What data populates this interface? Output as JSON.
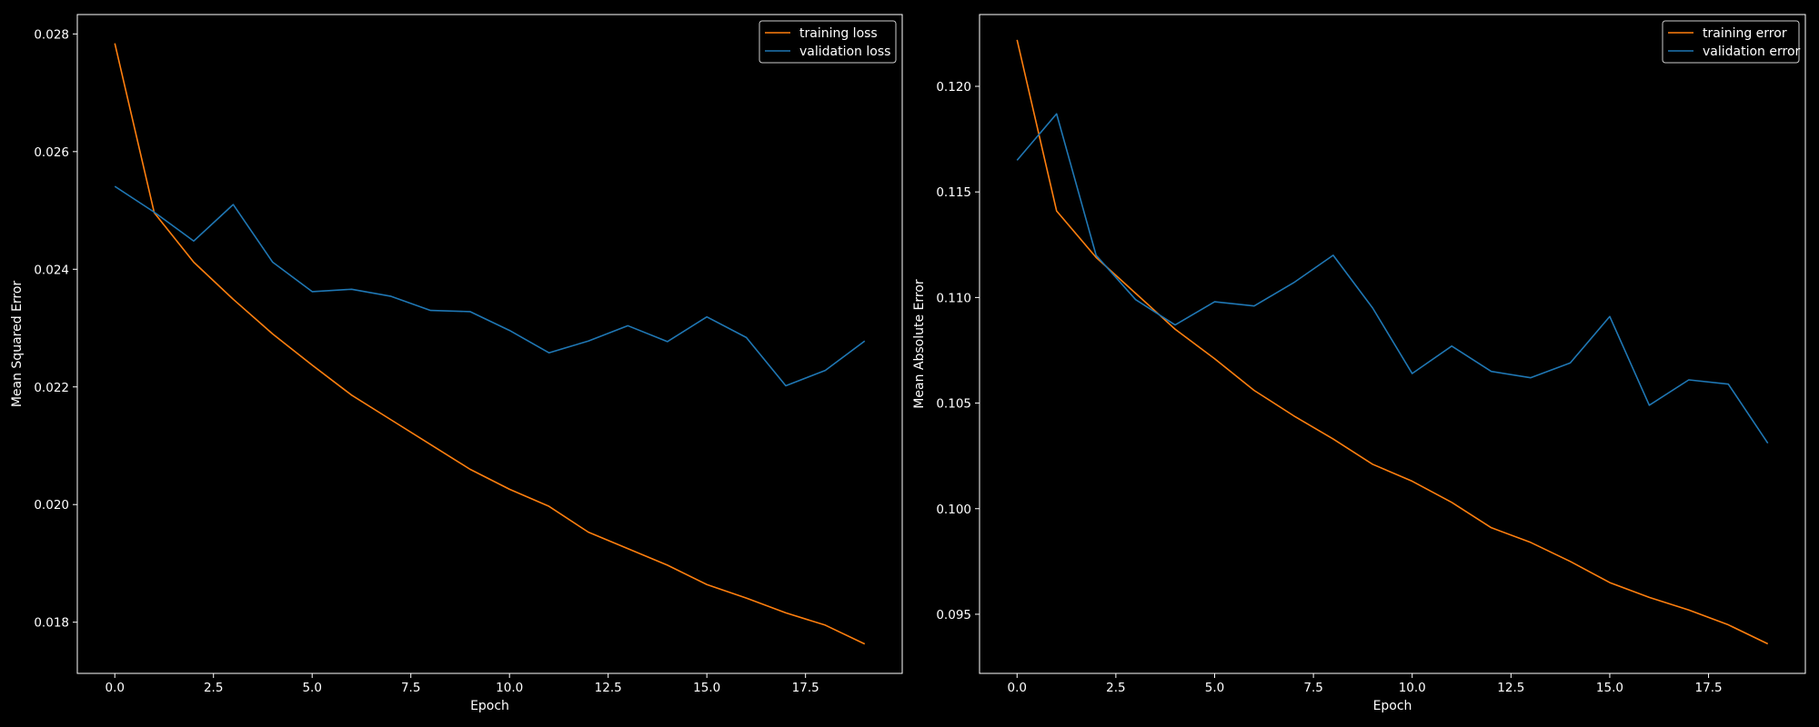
{
  "chart_data": [
    {
      "type": "line",
      "xlabel": "Epoch",
      "ylabel": "Mean Squared Error",
      "xlim": [
        -0.95,
        19.95
      ],
      "ylim": [
        0.01713,
        0.02833
      ],
      "xticks": [
        0.0,
        2.5,
        5.0,
        7.5,
        10.0,
        12.5,
        15.0,
        17.5
      ],
      "xtick_labels": [
        "0.0",
        "2.5",
        "5.0",
        "7.5",
        "10.0",
        "12.5",
        "15.0",
        "17.5"
      ],
      "yticks": [
        0.018,
        0.02,
        0.022,
        0.024,
        0.026,
        0.028
      ],
      "ytick_labels": [
        "0.018",
        "0.020",
        "0.022",
        "0.024",
        "0.026",
        "0.028"
      ],
      "grid": false,
      "legend_position": "top-right",
      "x": [
        0,
        1,
        2,
        3,
        4,
        5,
        6,
        7,
        8,
        9,
        10,
        11,
        12,
        13,
        14,
        15,
        16,
        17,
        18,
        19
      ],
      "series": [
        {
          "name": "training loss",
          "color": "#ff7f0e",
          "values": [
            0.02784,
            0.02496,
            0.02412,
            0.02349,
            0.0229,
            0.02237,
            0.02186,
            0.02144,
            0.02102,
            0.0206,
            0.02026,
            0.01997,
            0.01953,
            0.01925,
            0.01897,
            0.01864,
            0.01841,
            0.01816,
            0.01795,
            0.01763
          ]
        },
        {
          "name": "validation loss",
          "color": "#1f77b4",
          "values": [
            0.02541,
            0.02497,
            0.02448,
            0.0251,
            0.02412,
            0.02362,
            0.02366,
            0.02354,
            0.0233,
            0.02328,
            0.02296,
            0.02258,
            0.02278,
            0.02304,
            0.02277,
            0.02319,
            0.02284,
            0.02202,
            0.02228,
            0.02278
          ]
        }
      ]
    },
    {
      "type": "line",
      "xlabel": "Epoch",
      "ylabel": "Mean Absolute Error",
      "xlim": [
        -0.95,
        19.95
      ],
      "ylim": [
        0.0922,
        0.1234
      ],
      "xticks": [
        0.0,
        2.5,
        5.0,
        7.5,
        10.0,
        12.5,
        15.0,
        17.5
      ],
      "xtick_labels": [
        "0.0",
        "2.5",
        "5.0",
        "7.5",
        "10.0",
        "12.5",
        "15.0",
        "17.5"
      ],
      "yticks": [
        0.095,
        0.1,
        0.105,
        0.11,
        0.115,
        0.12
      ],
      "ytick_labels": [
        "0.095",
        "0.100",
        "0.105",
        "0.110",
        "0.115",
        "0.120"
      ],
      "grid": false,
      "legend_position": "top-right",
      "x": [
        0,
        1,
        2,
        3,
        4,
        5,
        6,
        7,
        8,
        9,
        10,
        11,
        12,
        13,
        14,
        15,
        16,
        17,
        18,
        19
      ],
      "series": [
        {
          "name": "training error",
          "color": "#ff7f0e",
          "values": [
            0.1222,
            0.1141,
            0.1119,
            0.1102,
            0.1085,
            0.1071,
            0.1056,
            0.1044,
            0.1033,
            0.1021,
            0.1013,
            0.1003,
            0.0991,
            0.0984,
            0.0975,
            0.0965,
            0.0958,
            0.0952,
            0.0945,
            0.0936
          ]
        },
        {
          "name": "validation error",
          "color": "#1f77b4",
          "values": [
            0.1165,
            0.1187,
            0.112,
            0.1099,
            0.1087,
            0.1098,
            0.1096,
            0.1107,
            0.112,
            0.1095,
            0.1064,
            0.1077,
            0.1065,
            0.1062,
            0.1069,
            0.1091,
            0.1049,
            0.1061,
            0.1059,
            0.1031
          ]
        }
      ]
    }
  ],
  "colors": {
    "background": "#000000",
    "axes": "#ffffff",
    "text": "#ffffff"
  }
}
